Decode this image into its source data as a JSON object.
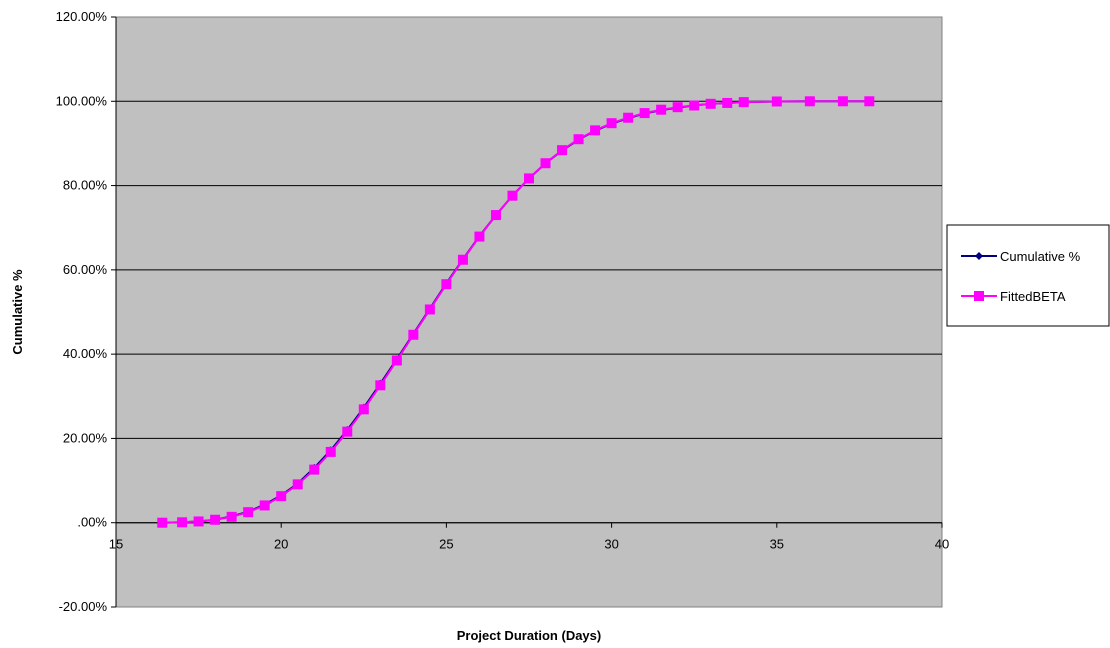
{
  "chart_data": {
    "type": "line",
    "title": "",
    "xlabel": "Project Duration (Days)",
    "ylabel": "Cumulative %",
    "xlim": [
      15,
      40
    ],
    "ylim": [
      -20,
      120
    ],
    "xticks": [
      15,
      20,
      25,
      30,
      35,
      40
    ],
    "yticks": [
      -20,
      0,
      20,
      40,
      60,
      80,
      100,
      120
    ],
    "ytick_labels": [
      "-20.00%",
      ".00%",
      "20.00%",
      "40.00%",
      "60.00%",
      "80.00%",
      "100.00%",
      "120.00%"
    ],
    "grid": "horizontal",
    "plot_background": "#c0c0c0",
    "legend_position": "right",
    "x": [
      16.4,
      17.0,
      17.5,
      18.0,
      18.5,
      19.0,
      19.5,
      20.0,
      20.5,
      21.0,
      21.5,
      22.0,
      22.5,
      23.0,
      23.5,
      24.0,
      24.5,
      25.0,
      25.5,
      26.0,
      26.5,
      27.0,
      27.5,
      28.0,
      28.5,
      29.0,
      29.5,
      30.0,
      30.5,
      31.0,
      31.5,
      32.0,
      32.5,
      33.0,
      33.5,
      34.0,
      35.0,
      36.0,
      37.0,
      37.8
    ],
    "series": [
      {
        "name": "Cumulative %",
        "color": "#000080",
        "marker": "diamond",
        "values": [
          0.0,
          0.1,
          0.3,
          0.7,
          1.5,
          2.6,
          4.3,
          6.5,
          9.3,
          13.0,
          17.2,
          22.0,
          27.3,
          33.0,
          38.8,
          44.8,
          50.8,
          56.8,
          62.5,
          68.0,
          73.0,
          77.6,
          81.7,
          85.3,
          88.3,
          90.9,
          93.0,
          94.7,
          96.0,
          97.1,
          97.9,
          98.5,
          99.0,
          99.4,
          99.6,
          99.8,
          99.95,
          100.0,
          100.0,
          100.0
        ]
      },
      {
        "name": "FittedBETA",
        "color": "#ff00ff",
        "marker": "square",
        "values": [
          0.0,
          0.1,
          0.3,
          0.7,
          1.4,
          2.5,
          4.1,
          6.3,
          9.1,
          12.6,
          16.8,
          21.6,
          26.9,
          32.6,
          38.5,
          44.6,
          50.6,
          56.6,
          62.4,
          67.9,
          73.0,
          77.6,
          81.7,
          85.3,
          88.4,
          91.0,
          93.1,
          94.8,
          96.1,
          97.2,
          98.0,
          98.6,
          99.0,
          99.4,
          99.6,
          99.8,
          99.95,
          100.0,
          100.0,
          100.0
        ]
      }
    ]
  }
}
